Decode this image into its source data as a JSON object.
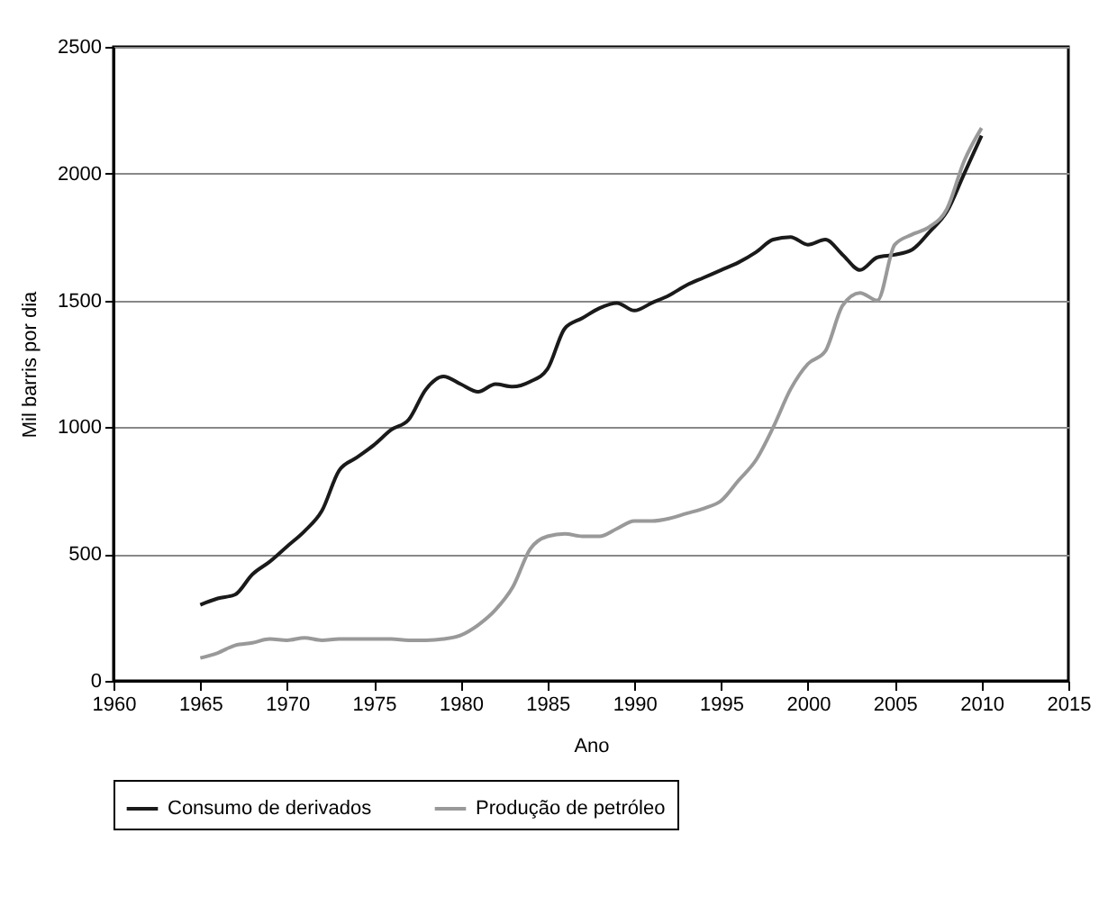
{
  "chart_data": {
    "type": "line",
    "xlabel": "Ano",
    "ylabel": "Mil barris por dia",
    "x": [
      1965,
      1966,
      1967,
      1968,
      1969,
      1970,
      1971,
      1972,
      1973,
      1974,
      1975,
      1976,
      1977,
      1978,
      1979,
      1980,
      1981,
      1982,
      1983,
      1984,
      1985,
      1986,
      1987,
      1988,
      1989,
      1990,
      1991,
      1992,
      1993,
      1994,
      1995,
      1996,
      1997,
      1998,
      1999,
      2000,
      2001,
      2002,
      2003,
      2004,
      2005,
      2006,
      2007,
      2008,
      2009,
      2010
    ],
    "series": [
      {
        "name": "Consumo de derivados",
        "color": "#1a1a1a",
        "values": [
          300,
          325,
          340,
          420,
          470,
          530,
          590,
          670,
          830,
          880,
          930,
          990,
          1030,
          1150,
          1200,
          1170,
          1140,
          1170,
          1160,
          1180,
          1230,
          1390,
          1430,
          1470,
          1490,
          1460,
          1490,
          1520,
          1560,
          1590,
          1620,
          1650,
          1690,
          1740,
          1750,
          1720,
          1740,
          1680,
          1620,
          1670,
          1680,
          1700,
          1770,
          1850,
          2000,
          2150
        ]
      },
      {
        "name": "Produção de petróleo",
        "color": "#999999",
        "values": [
          90,
          110,
          140,
          150,
          165,
          160,
          170,
          160,
          165,
          165,
          165,
          165,
          160,
          160,
          165,
          180,
          220,
          280,
          370,
          520,
          570,
          580,
          570,
          570,
          600,
          630,
          630,
          640,
          660,
          680,
          710,
          790,
          870,
          1000,
          1150,
          1250,
          1300,
          1480,
          1530,
          1500,
          1720,
          1760,
          1790,
          1860,
          2050,
          2180
        ]
      }
    ],
    "xlim": [
      1960,
      2015
    ],
    "xticks": [
      1960,
      1965,
      1970,
      1975,
      1980,
      1985,
      1990,
      1995,
      2000,
      2005,
      2010,
      2015
    ],
    "ylim": [
      0,
      2500
    ],
    "yticks": [
      0,
      500,
      1000,
      1500,
      2000,
      2500
    ],
    "grid": "y",
    "legend": "bottom",
    "marker": "none",
    "line_style": "solid"
  }
}
